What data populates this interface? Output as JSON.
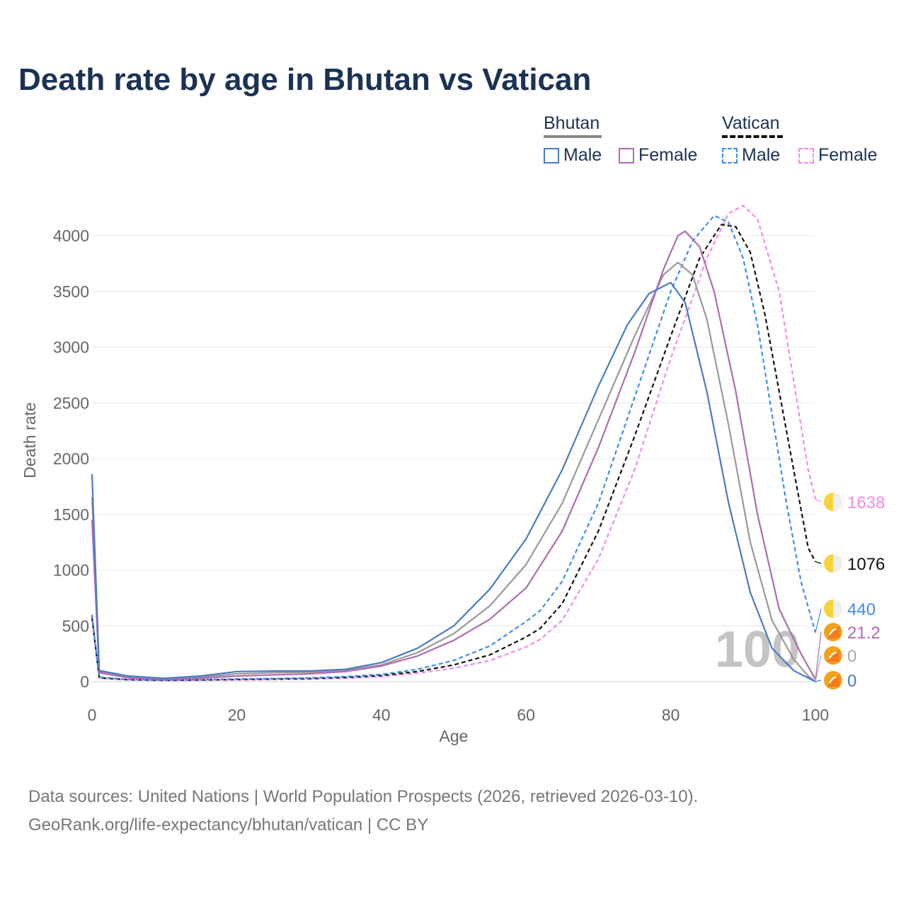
{
  "title": "Death rate by age in Bhutan vs Vatican",
  "legend": {
    "groups": [
      {
        "name": "Bhutan",
        "color": "#888888",
        "dash": false,
        "items": [
          {
            "label": "Male",
            "color": "#4a7bc4"
          },
          {
            "label": "Female",
            "color": "#b06ab3"
          }
        ]
      },
      {
        "name": "Vatican",
        "color": "#111111",
        "dash": true,
        "items": [
          {
            "label": "Male",
            "color": "#3a8ef0"
          },
          {
            "label": "Female",
            "color": "#f28be8"
          }
        ]
      }
    ]
  },
  "chart_data": {
    "type": "line",
    "xlabel": "Age",
    "ylabel": "Death rate",
    "xlim": [
      0,
      100
    ],
    "ylim": [
      0,
      4400
    ],
    "x_ticks": [
      0,
      20,
      40,
      60,
      80,
      100
    ],
    "y_ticks": [
      0,
      500,
      1000,
      1500,
      2000,
      2500,
      3000,
      3500,
      4000
    ],
    "grid": true,
    "watermark": "100",
    "series": [
      {
        "name": "Vatican Female",
        "color": "#f28be8",
        "dash": true,
        "end_label": "1638",
        "points": [
          [
            0,
            560
          ],
          [
            1,
            30
          ],
          [
            5,
            15
          ],
          [
            10,
            10
          ],
          [
            15,
            12
          ],
          [
            20,
            15
          ],
          [
            25,
            18
          ],
          [
            30,
            22
          ],
          [
            35,
            30
          ],
          [
            40,
            45
          ],
          [
            45,
            75
          ],
          [
            50,
            120
          ],
          [
            55,
            190
          ],
          [
            60,
            310
          ],
          [
            62,
            380
          ],
          [
            65,
            550
          ],
          [
            70,
            1100
          ],
          [
            75,
            1900
          ],
          [
            80,
            2900
          ],
          [
            85,
            3800
          ],
          [
            88,
            4200
          ],
          [
            90,
            4270
          ],
          [
            92,
            4150
          ],
          [
            95,
            3500
          ],
          [
            97,
            2700
          ],
          [
            99,
            1900
          ],
          [
            100,
            1638
          ]
        ]
      },
      {
        "name": "Vatican Both",
        "color": "#111111",
        "dash": true,
        "end_label": "1076",
        "points": [
          [
            0,
            580
          ],
          [
            1,
            35
          ],
          [
            5,
            18
          ],
          [
            10,
            12
          ],
          [
            15,
            15
          ],
          [
            20,
            20
          ],
          [
            25,
            24
          ],
          [
            30,
            28
          ],
          [
            35,
            38
          ],
          [
            40,
            55
          ],
          [
            45,
            90
          ],
          [
            50,
            150
          ],
          [
            55,
            240
          ],
          [
            60,
            400
          ],
          [
            62,
            480
          ],
          [
            65,
            700
          ],
          [
            70,
            1350
          ],
          [
            75,
            2200
          ],
          [
            80,
            3100
          ],
          [
            84,
            3800
          ],
          [
            87,
            4100
          ],
          [
            89,
            4080
          ],
          [
            91,
            3850
          ],
          [
            93,
            3300
          ],
          [
            95,
            2600
          ],
          [
            97,
            1900
          ],
          [
            99,
            1200
          ],
          [
            100,
            1076
          ]
        ]
      },
      {
        "name": "Vatican Male",
        "color": "#3a8ef0",
        "dash": true,
        "end_label": "440",
        "points": [
          [
            0,
            600
          ],
          [
            1,
            40
          ],
          [
            5,
            20
          ],
          [
            10,
            14
          ],
          [
            15,
            17
          ],
          [
            20,
            24
          ],
          [
            25,
            28
          ],
          [
            30,
            33
          ],
          [
            35,
            45
          ],
          [
            40,
            65
          ],
          [
            45,
            110
          ],
          [
            50,
            190
          ],
          [
            55,
            320
          ],
          [
            60,
            540
          ],
          [
            62,
            640
          ],
          [
            65,
            900
          ],
          [
            70,
            1600
          ],
          [
            75,
            2550
          ],
          [
            80,
            3500
          ],
          [
            83,
            3950
          ],
          [
            86,
            4180
          ],
          [
            88,
            4120
          ],
          [
            90,
            3800
          ],
          [
            92,
            3200
          ],
          [
            94,
            2400
          ],
          [
            96,
            1600
          ],
          [
            98,
            900
          ],
          [
            100,
            440
          ]
        ]
      },
      {
        "name": "Bhutan Both",
        "color": "#999999",
        "dash": false,
        "end_label": "0",
        "points": [
          [
            0,
            1650
          ],
          [
            1,
            90
          ],
          [
            5,
            40
          ],
          [
            10,
            25
          ],
          [
            15,
            40
          ],
          [
            20,
            70
          ],
          [
            25,
            80
          ],
          [
            30,
            85
          ],
          [
            35,
            100
          ],
          [
            40,
            150
          ],
          [
            45,
            260
          ],
          [
            50,
            430
          ],
          [
            55,
            680
          ],
          [
            60,
            1050
          ],
          [
            65,
            1600
          ],
          [
            70,
            2350
          ],
          [
            75,
            3100
          ],
          [
            79,
            3650
          ],
          [
            81,
            3760
          ],
          [
            83,
            3650
          ],
          [
            85,
            3250
          ],
          [
            88,
            2300
          ],
          [
            91,
            1250
          ],
          [
            94,
            550
          ],
          [
            97,
            200
          ],
          [
            99,
            50
          ],
          [
            100,
            0
          ]
        ]
      },
      {
        "name": "Bhutan Female",
        "color": "#b06ab3",
        "dash": false,
        "end_label": "21.2",
        "points": [
          [
            0,
            1450
          ],
          [
            1,
            80
          ],
          [
            5,
            35
          ],
          [
            10,
            20
          ],
          [
            15,
            30
          ],
          [
            20,
            50
          ],
          [
            25,
            60
          ],
          [
            30,
            70
          ],
          [
            35,
            90
          ],
          [
            40,
            140
          ],
          [
            45,
            230
          ],
          [
            50,
            370
          ],
          [
            55,
            560
          ],
          [
            60,
            840
          ],
          [
            65,
            1350
          ],
          [
            70,
            2100
          ],
          [
            75,
            2950
          ],
          [
            79,
            3700
          ],
          [
            81,
            4000
          ],
          [
            82,
            4040
          ],
          [
            84,
            3900
          ],
          [
            86,
            3500
          ],
          [
            89,
            2600
          ],
          [
            92,
            1500
          ],
          [
            95,
            650
          ],
          [
            98,
            250
          ],
          [
            100,
            21.2
          ]
        ]
      },
      {
        "name": "Bhutan Male",
        "color": "#4a7bc4",
        "dash": false,
        "end_label": "0",
        "points": [
          [
            0,
            1860
          ],
          [
            1,
            100
          ],
          [
            5,
            50
          ],
          [
            10,
            30
          ],
          [
            15,
            50
          ],
          [
            20,
            90
          ],
          [
            25,
            95
          ],
          [
            30,
            95
          ],
          [
            35,
            110
          ],
          [
            40,
            170
          ],
          [
            45,
            300
          ],
          [
            50,
            500
          ],
          [
            55,
            830
          ],
          [
            60,
            1280
          ],
          [
            65,
            1900
          ],
          [
            70,
            2650
          ],
          [
            74,
            3200
          ],
          [
            77,
            3480
          ],
          [
            80,
            3580
          ],
          [
            82,
            3400
          ],
          [
            85,
            2600
          ],
          [
            88,
            1600
          ],
          [
            91,
            800
          ],
          [
            94,
            300
          ],
          [
            97,
            100
          ],
          [
            100,
            0
          ]
        ]
      }
    ]
  },
  "footer": {
    "line1": "Data sources: United Nations | World Population Prospects (2026, retrieved 2026-03-10).",
    "line2": "GeoRank.org/life-expectancy/bhutan/vatican | CC BY"
  }
}
